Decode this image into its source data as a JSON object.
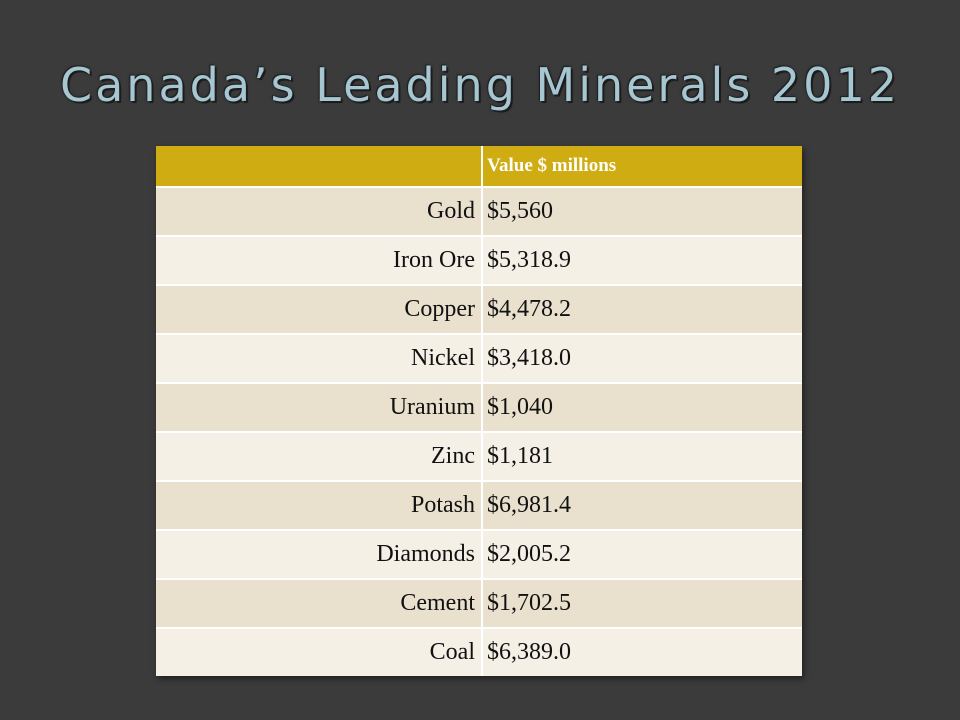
{
  "slide": {
    "title": "Canada’s Leading Minerals 2012"
  },
  "table": {
    "headers": [
      "",
      "Value $ millions"
    ],
    "rows": [
      {
        "mineral": "Gold",
        "value": "$5,560"
      },
      {
        "mineral": "Iron Ore",
        "value": "$5,318.9"
      },
      {
        "mineral": "Copper",
        "value": "$4,478.2"
      },
      {
        "mineral": "Nickel",
        "value": "$3,418.0"
      },
      {
        "mineral": "Uranium",
        "value": "$1,040"
      },
      {
        "mineral": "Zinc",
        "value": "$1,181"
      },
      {
        "mineral": "Potash",
        "value": "$6,981.4"
      },
      {
        "mineral": "Diamonds",
        "value": "$2,005.2"
      },
      {
        "mineral": "Cement",
        "value": "$1,702.5"
      },
      {
        "mineral": "Coal",
        "value": "$6,389.0"
      }
    ]
  },
  "colors": {
    "background": "#3b3b3b",
    "title": "#a6c7d2",
    "header": "#cfac12",
    "row_odd": "#e9e1ce",
    "row_even": "#f4f0e6"
  },
  "chart_data": {
    "type": "table",
    "columns": [
      "",
      "Value $ millions"
    ],
    "rows": [
      [
        "Gold",
        "$5,560"
      ],
      [
        "Iron Ore",
        "$5,318.9"
      ],
      [
        "Copper",
        "$4,478.2"
      ],
      [
        "Nickel",
        "$3,418.0"
      ],
      [
        "Uranium",
        "$1,040"
      ],
      [
        "Zinc",
        "$1,181"
      ],
      [
        "Potash",
        "$6,981.4"
      ],
      [
        "Diamonds",
        "$2,005.2"
      ],
      [
        "Cement",
        "$1,702.5"
      ],
      [
        "Coal",
        "$6,389.0"
      ]
    ],
    "title": "Canada’s Leading Minerals 2012"
  }
}
